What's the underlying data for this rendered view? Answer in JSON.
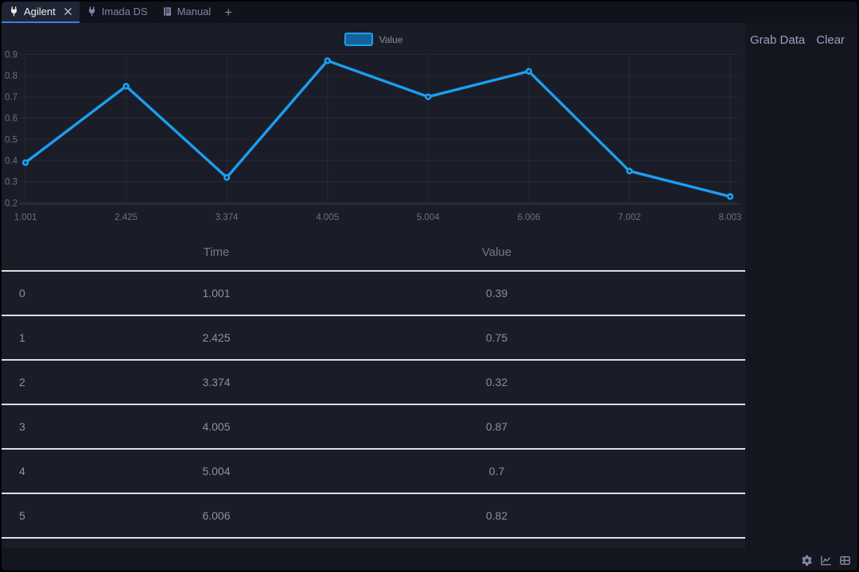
{
  "tab_bar": {
    "tabs": [
      {
        "label": "Agilent",
        "icon": "plug-icon",
        "active": true,
        "closable": true
      },
      {
        "label": "Imada DS",
        "icon": "plug-icon",
        "active": false,
        "closable": false
      },
      {
        "label": "Manual",
        "icon": "book-icon",
        "active": false,
        "closable": false
      }
    ],
    "add_tab_label": "+"
  },
  "toolbar": {
    "grab_data_label": "Grab Data",
    "clear_label": "Clear"
  },
  "chart_data": {
    "type": "line",
    "title": "",
    "legend": [
      "Value"
    ],
    "legend_position": "top-center",
    "x_type": "category",
    "x": [
      1.001,
      2.425,
      3.374,
      4.005,
      5.004,
      6.006,
      7.002,
      8.003
    ],
    "series": [
      {
        "name": "Value",
        "color": "#1b9ff0",
        "values": [
          0.39,
          0.75,
          0.32,
          0.87,
          0.7,
          0.82,
          0.35,
          0.23
        ]
      }
    ],
    "ylim": [
      0.2,
      0.9
    ],
    "y_ticks": [
      0.2,
      0.3,
      0.4,
      0.5,
      0.6,
      0.7,
      0.8,
      0.9
    ],
    "grid": true
  },
  "table": {
    "columns": [
      "",
      "Time",
      "Value"
    ],
    "rows": [
      {
        "index": "0",
        "time": "1.001",
        "value": "0.39"
      },
      {
        "index": "1",
        "time": "2.425",
        "value": "0.75"
      },
      {
        "index": "2",
        "time": "3.374",
        "value": "0.32"
      },
      {
        "index": "3",
        "time": "4.005",
        "value": "0.87"
      },
      {
        "index": "4",
        "time": "5.004",
        "value": "0.7"
      },
      {
        "index": "5",
        "time": "6.006",
        "value": "0.82"
      }
    ]
  },
  "status_bar": {
    "icons": [
      "settings-icon",
      "line-chart-icon",
      "table-icon"
    ]
  },
  "colors": {
    "accent_blue": "#1b9ff0",
    "tab_underline": "#3e7ede",
    "panel_bg": "#1a1d28",
    "window_bg": "#14161f",
    "tabbar_bg": "#10131c",
    "row_divider": "#dcdee8",
    "muted_text": "#8c909f"
  }
}
